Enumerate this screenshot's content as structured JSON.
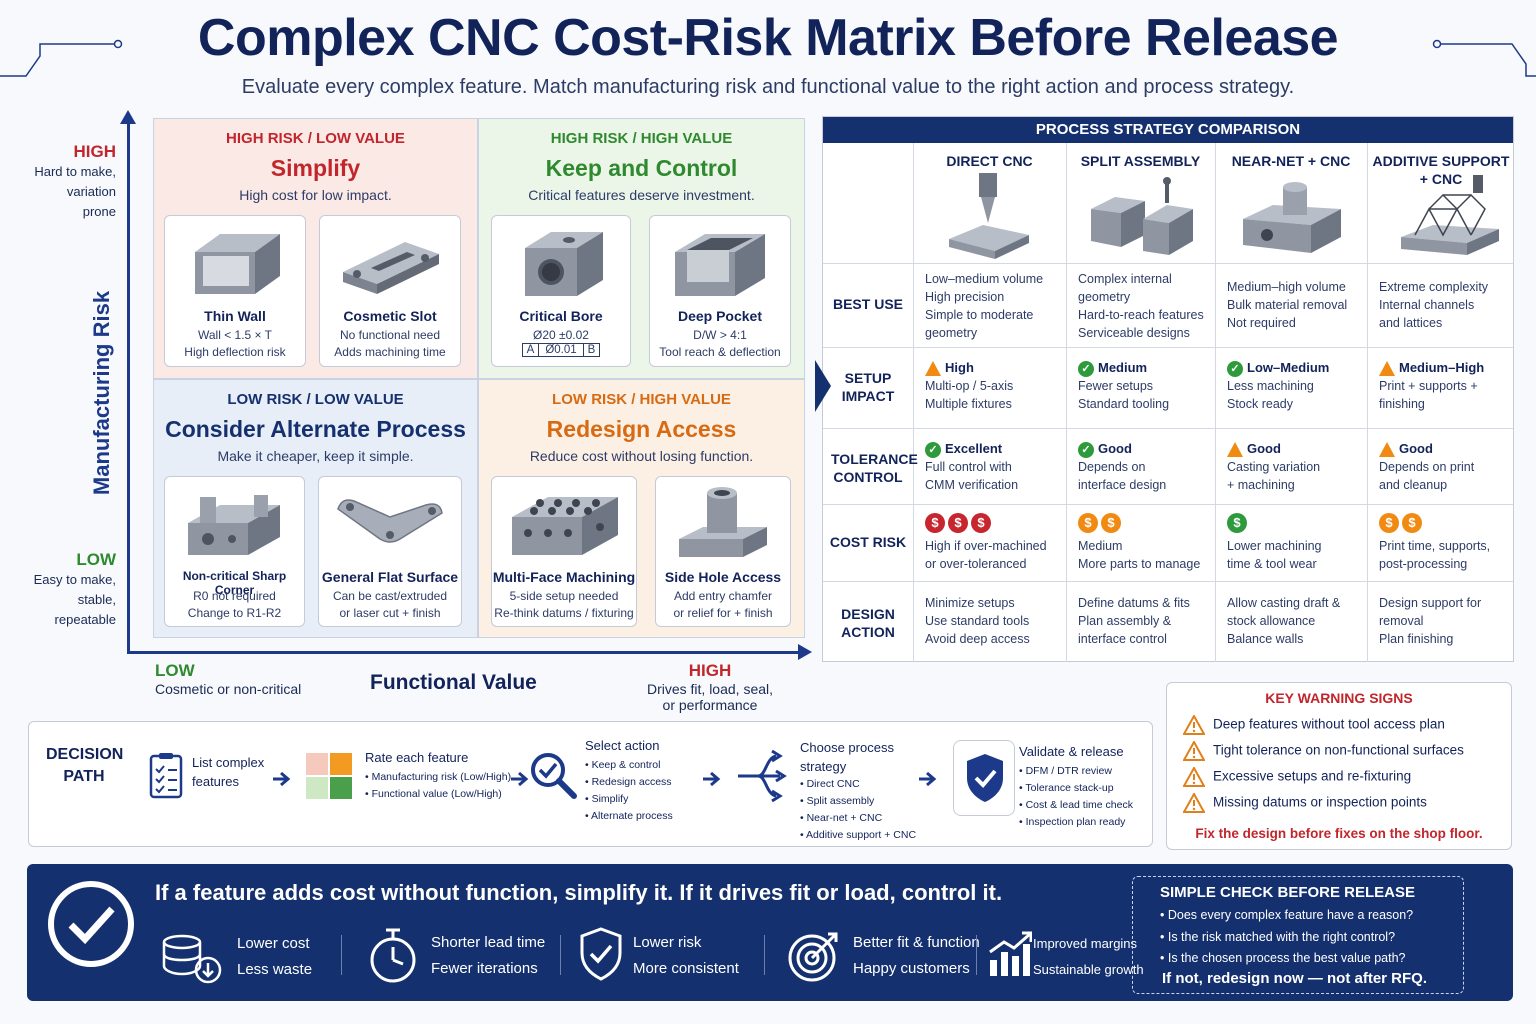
{
  "header": {
    "title": "Complex CNC Cost-Risk Matrix Before Release",
    "subtitle": "Evaluate every complex feature. Match manufacturing risk and functional value to the right action and process strategy."
  },
  "axes": {
    "y_title": "Manufacturing Risk",
    "y_high": "HIGH",
    "y_high_desc": [
      "Hard to make,",
      "variation",
      "prone"
    ],
    "y_low": "LOW",
    "y_low_desc": [
      "Easy to make,",
      "stable,",
      "repeatable"
    ],
    "x_title": "Functional Value",
    "x_low": "LOW",
    "x_low_desc": "Cosmetic or non-critical",
    "x_high": "HIGH",
    "x_high_desc": [
      "Drives fit, load, seal,",
      "or performance"
    ]
  },
  "quadrants": {
    "simplify": {
      "tag": "HIGH RISK / LOW VALUE",
      "name": "Simplify",
      "desc": "High cost for low impact.",
      "color": "#c0262b",
      "bg": "#fbe9e6",
      "cards": [
        {
          "title": "Thin Wall",
          "l1": "Wall < 1.5 × T",
          "l2": "High deflection risk"
        },
        {
          "title": "Cosmetic Slot",
          "l1": "No functional need",
          "l2": "Adds machining time"
        }
      ]
    },
    "keep": {
      "tag": "HIGH RISK / HIGH VALUE",
      "name": "Keep and Control",
      "desc": "Critical features deserve investment.",
      "color": "#2f8a2f",
      "bg": "#ebf5e8",
      "cards": [
        {
          "title": "Critical Bore",
          "l1": "Ø20 ±0.02",
          "fcf": [
            "A",
            "Ø0.01",
            "B"
          ]
        },
        {
          "title": "Deep Pocket",
          "l1": "D/W > 4:1",
          "l2": "Tool reach & deflection"
        }
      ]
    },
    "alternate": {
      "tag": "LOW RISK / LOW VALUE",
      "name": "Consider Alternate Process",
      "desc": "Make it cheaper, keep it simple.",
      "color": "#14306e",
      "bg": "#e8eef8",
      "cards": [
        {
          "title": "Non-critical Sharp Corner",
          "l1": "R0 not required",
          "l2": "Change to R1-R2"
        },
        {
          "title": "General Flat Surface",
          "l1": "Can be cast/extruded",
          "l2": "or laser cut + finish"
        }
      ]
    },
    "redesign": {
      "tag": "LOW RISK / HIGH VALUE",
      "name": "Redesign Access",
      "desc": "Reduce cost without losing function.",
      "color": "#d76a12",
      "bg": "#fcf0e4",
      "cards": [
        {
          "title": "Multi-Face Machining",
          "l1": "5-side setup needed",
          "l2": "Re-think datums / fixturing"
        },
        {
          "title": "Side Hole Access",
          "l1": "Add entry chamfer",
          "l2": "or relief for + finish"
        }
      ]
    }
  },
  "process_table": {
    "title": "PROCESS STRATEGY COMPARISON",
    "columns": [
      "DIRECT CNC",
      "SPLIT ASSEMBLY",
      "NEAR-NET + CNC",
      "ADDITIVE SUPPORT + CNC"
    ],
    "rows": {
      "best_use": {
        "label": "BEST USE",
        "cells": [
          [
            "Low–medium volume",
            "High precision",
            "Simple to moderate",
            "geometry"
          ],
          [
            "Complex internal",
            "geometry",
            "Hard-to-reach features",
            "Serviceable designs"
          ],
          [
            "Medium–high volume",
            "Bulk material removal",
            "Not required"
          ],
          [
            "Extreme complexity",
            "Internal channels",
            "and lattices"
          ]
        ]
      },
      "setup": {
        "label": "SETUP IMPACT",
        "cells": [
          {
            "icon": "warn",
            "status": "High",
            "l": [
              "Multi-op / 5-axis",
              "Multiple fixtures"
            ]
          },
          {
            "icon": "ok",
            "status": "Medium",
            "l": [
              "Fewer setups",
              "Standard tooling"
            ]
          },
          {
            "icon": "ok",
            "status": "Low–Medium",
            "l": [
              "Less machining",
              "Stock ready"
            ]
          },
          {
            "icon": "warn",
            "status": "Medium–High",
            "l": [
              "Print + supports +",
              "finishing"
            ]
          }
        ]
      },
      "tolerance": {
        "label": "TOLERANCE CONTROL",
        "cells": [
          {
            "icon": "ok",
            "status": "Excellent",
            "l": [
              "Full control with",
              "CMM verification"
            ]
          },
          {
            "icon": "ok",
            "status": "Good",
            "l": [
              "Depends on",
              "interface design"
            ]
          },
          {
            "icon": "warn",
            "status": "Good",
            "l": [
              "Casting variation",
              "+ machining"
            ]
          },
          {
            "icon": "warn",
            "status": "Good",
            "l": [
              "Depends on print",
              "and cleanup"
            ]
          }
        ]
      },
      "cost": {
        "label": "COST RISK",
        "cells": [
          {
            "coins": 3,
            "coin_color": "red",
            "l": [
              "High if over-machined",
              "or over-toleranced"
            ]
          },
          {
            "coins": 2,
            "coin_color": "orange",
            "l": [
              "Medium",
              "More parts to manage"
            ]
          },
          {
            "coins": 1,
            "coin_color": "green",
            "l": [
              "Lower machining",
              "time & tool wear"
            ]
          },
          {
            "coins": 2,
            "coin_color": "orange",
            "l": [
              "Print time, supports,",
              "post-processing"
            ]
          }
        ]
      },
      "design": {
        "label": "DESIGN ACTION",
        "cells": [
          [
            "Minimize setups",
            "Use standard tools",
            "Avoid deep access"
          ],
          [
            "Define datums & fits",
            "Plan assembly &",
            "interface control"
          ],
          [
            "Allow casting draft &",
            "stock allowance",
            "Balance walls"
          ],
          [
            "Design support for",
            "removal",
            "Plan finishing"
          ]
        ]
      }
    },
    "coin_symbol": "$"
  },
  "warnings": {
    "title": "KEY WARNING SIGNS",
    "items": [
      "Deep features without tool access plan",
      "Tight tolerance on non-functional surfaces",
      "Excessive setups and re-fixturing",
      "Missing datums or inspection points"
    ],
    "footer": "Fix the design before fixes on the shop floor."
  },
  "decision_path": {
    "label": [
      "DECISION",
      "PATH"
    ],
    "steps": [
      {
        "title": [
          "List complex",
          "features"
        ]
      },
      {
        "title": [
          "Rate each feature"
        ],
        "bullets": [
          "Manufacturing risk (Low/High)",
          "Functional value (Low/High)"
        ]
      },
      {
        "title": [
          "Select action"
        ],
        "bullets": [
          "Keep & control",
          "Redesign access",
          "Simplify",
          "Alternate process"
        ]
      },
      {
        "title": [
          "Choose process",
          "strategy"
        ],
        "bullets": [
          "Direct CNC",
          "Split assembly",
          "Near-net + CNC",
          "Additive support + CNC"
        ]
      },
      {
        "title": [
          "Validate & release"
        ],
        "bullets": [
          "DFM / DTR review",
          "Tolerance stack-up",
          "Cost & lead time check",
          "Inspection plan ready"
        ]
      }
    ]
  },
  "banner": {
    "main": "If a feature adds cost without function, simplify it.  If it drives fit or load, control it.",
    "benefits": [
      [
        "Lower cost",
        "Less waste"
      ],
      [
        "Shorter lead time",
        "Fewer iterations"
      ],
      [
        "Lower risk",
        "More consistent"
      ],
      [
        "Better fit & function",
        "Happy customers"
      ],
      [
        "Improved margins",
        "Sustainable growth"
      ]
    ],
    "check": {
      "title": "SIMPLE CHECK BEFORE RELEASE",
      "items": [
        "• Does every complex feature have a reason?",
        "• Is the risk matched with the right control?",
        "• Is the chosen process the best value path?"
      ],
      "footer": "If not, redesign now — not after RFQ."
    }
  },
  "colors": {
    "navy": "#14306e",
    "red": "#c0262b",
    "green": "#2f8a2f",
    "orange": "#d76a12"
  }
}
